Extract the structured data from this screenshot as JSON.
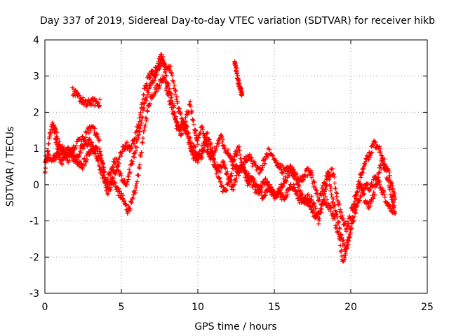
{
  "chart_data": {
    "type": "scatter",
    "title": "Day 337 of 2019, Sidereal Day-to-day VTEC variation (SDTVAR) for receiver hikb",
    "xlabel": "GPS time / hours",
    "ylabel": "SDTVAR / TECUs",
    "xlim": [
      0,
      25
    ],
    "ylim": [
      -3,
      4
    ],
    "xticks": [
      0,
      5,
      10,
      15,
      20,
      25
    ],
    "yticks": [
      -3,
      -2,
      -1,
      0,
      1,
      2,
      3,
      4
    ],
    "grid": true,
    "marker": "+",
    "marker_color": "#ff0000",
    "tracks": [
      {
        "name": "track-1",
        "points": [
          [
            0.0,
            0.4
          ],
          [
            0.2,
            1.0
          ],
          [
            0.4,
            1.6
          ],
          [
            0.7,
            1.5
          ],
          [
            1.0,
            1.0
          ],
          [
            1.3,
            0.8
          ],
          [
            1.6,
            0.9
          ],
          [
            2.0,
            1.1
          ],
          [
            2.4,
            1.2
          ],
          [
            2.8,
            1.5
          ],
          [
            3.2,
            1.5
          ],
          [
            3.5,
            1.3
          ],
          [
            3.8,
            0.5
          ],
          [
            4.0,
            0.0
          ],
          [
            4.3,
            0.4
          ],
          [
            4.6,
            0.7
          ],
          [
            5.0,
            0.2
          ],
          [
            5.3,
            0.0
          ],
          [
            5.6,
            0.5
          ],
          [
            5.9,
            0.9
          ],
          [
            6.2,
            1.5
          ],
          [
            6.5,
            2.2
          ],
          [
            6.8,
            2.7
          ],
          [
            7.1,
            2.9
          ],
          [
            7.4,
            3.2
          ],
          [
            7.7,
            3.5
          ],
          [
            8.0,
            2.8
          ],
          [
            8.3,
            2.4
          ],
          [
            8.6,
            1.8
          ],
          [
            8.9,
            1.4
          ],
          [
            9.2,
            1.8
          ],
          [
            9.5,
            2.2
          ],
          [
            9.8,
            1.5
          ],
          [
            10.0,
            1.2
          ],
          [
            10.3,
            1.6
          ],
          [
            10.6,
            1.0
          ],
          [
            10.9,
            0.8
          ],
          [
            11.2,
            1.0
          ],
          [
            11.5,
            1.3
          ],
          [
            11.8,
            1.0
          ],
          [
            12.1,
            0.8
          ],
          [
            12.4,
            0.5
          ],
          [
            12.7,
            0.4
          ],
          [
            13.0,
            0.6
          ],
          [
            13.3,
            0.8
          ],
          [
            13.6,
            0.6
          ],
          [
            14.0,
            0.4
          ],
          [
            14.3,
            0.6
          ],
          [
            14.6,
            0.9
          ],
          [
            15.0,
            0.7
          ],
          [
            15.3,
            0.5
          ],
          [
            15.6,
            0.4
          ],
          [
            16.0,
            0.5
          ],
          [
            16.3,
            0.3
          ],
          [
            16.7,
            0.1
          ],
          [
            17.0,
            0.3
          ],
          [
            17.3,
            0.4
          ],
          [
            17.6,
            0.0
          ],
          [
            17.9,
            -0.4
          ],
          [
            18.2,
            -0.1
          ],
          [
            18.5,
            0.3
          ],
          [
            18.8,
            -0.4
          ],
          [
            19.1,
            -0.8
          ],
          [
            19.4,
            -1.5
          ],
          [
            19.7,
            -1.8
          ],
          [
            20.0,
            -1.2
          ],
          [
            20.3,
            -0.5
          ],
          [
            20.6,
            0.2
          ],
          [
            20.9,
            0.6
          ],
          [
            21.2,
            0.8
          ],
          [
            21.5,
            1.1
          ],
          [
            21.8,
            1.1
          ],
          [
            22.1,
            0.6
          ],
          [
            22.4,
            0.2
          ],
          [
            22.7,
            -0.4
          ],
          [
            22.9,
            -0.8
          ]
        ]
      },
      {
        "name": "track-2",
        "points": [
          [
            0.0,
            0.7
          ],
          [
            0.3,
            0.8
          ],
          [
            0.6,
            0.7
          ],
          [
            0.9,
            0.9
          ],
          [
            1.2,
            1.0
          ],
          [
            1.5,
            0.7
          ],
          [
            1.8,
            0.8
          ],
          [
            2.1,
            0.6
          ],
          [
            2.4,
            0.5
          ],
          [
            2.7,
            0.7
          ],
          [
            3.0,
            0.9
          ],
          [
            3.3,
            1.0
          ],
          [
            3.6,
            0.8
          ],
          [
            3.9,
            0.3
          ],
          [
            4.2,
            -0.1
          ],
          [
            4.5,
            0.1
          ],
          [
            4.8,
            -0.2
          ],
          [
            5.1,
            -0.4
          ],
          [
            5.4,
            -0.7
          ],
          [
            5.7,
            -0.5
          ],
          [
            6.0,
            0.0
          ],
          [
            6.3,
            0.9
          ],
          [
            6.6,
            1.8
          ],
          [
            6.9,
            2.4
          ],
          [
            7.2,
            2.6
          ],
          [
            7.5,
            2.8
          ],
          [
            7.8,
            3.0
          ],
          [
            8.1,
            2.4
          ],
          [
            8.4,
            2.0
          ],
          [
            8.7,
            1.5
          ],
          [
            9.0,
            1.7
          ],
          [
            9.3,
            1.5
          ],
          [
            9.6,
            1.1
          ],
          [
            9.9,
            0.9
          ],
          [
            10.2,
            0.7
          ],
          [
            10.5,
            1.2
          ],
          [
            10.8,
            0.8
          ],
          [
            11.1,
            0.6
          ],
          [
            11.4,
            0.4
          ],
          [
            11.7,
            0.6
          ],
          [
            12.0,
            0.2
          ],
          [
            12.3,
            -0.1
          ],
          [
            12.6,
            0.3
          ],
          [
            12.9,
            0.5
          ],
          [
            13.2,
            0.3
          ],
          [
            13.5,
            0.1
          ],
          [
            13.8,
            -0.2
          ],
          [
            14.1,
            -0.1
          ],
          [
            14.4,
            0.1
          ],
          [
            14.7,
            -0.1
          ],
          [
            15.0,
            -0.3
          ],
          [
            15.3,
            -0.2
          ],
          [
            15.6,
            -0.4
          ],
          [
            15.9,
            -0.2
          ],
          [
            16.2,
            0.0
          ],
          [
            16.5,
            -0.3
          ],
          [
            16.8,
            -0.5
          ],
          [
            17.1,
            -0.4
          ],
          [
            17.4,
            -0.6
          ],
          [
            17.7,
            -0.9
          ],
          [
            18.0,
            -0.7
          ],
          [
            18.3,
            -0.4
          ],
          [
            18.6,
            -0.6
          ],
          [
            18.9,
            -0.9
          ],
          [
            19.2,
            -1.4
          ],
          [
            19.5,
            -2.1
          ],
          [
            19.8,
            -1.6
          ],
          [
            20.1,
            -1.0
          ],
          [
            20.4,
            -0.6
          ],
          [
            20.7,
            -0.2
          ],
          [
            21.0,
            0.0
          ],
          [
            21.3,
            -0.1
          ],
          [
            21.6,
            0.2
          ],
          [
            21.9,
            0.0
          ],
          [
            22.2,
            -0.3
          ],
          [
            22.5,
            -0.6
          ],
          [
            22.8,
            -0.7
          ]
        ]
      },
      {
        "name": "track-3",
        "points": [
          [
            1.8,
            2.6
          ],
          [
            2.1,
            2.45
          ],
          [
            2.4,
            2.35
          ],
          [
            2.7,
            2.2
          ],
          [
            3.0,
            2.3
          ],
          [
            3.3,
            2.28
          ],
          [
            3.6,
            2.25
          ]
        ]
      },
      {
        "name": "track-4",
        "points": [
          [
            12.4,
            3.4
          ],
          [
            12.5,
            3.2
          ],
          [
            12.6,
            2.95
          ],
          [
            12.7,
            2.75
          ],
          [
            12.8,
            2.6
          ],
          [
            12.9,
            2.5
          ]
        ]
      },
      {
        "name": "track-5",
        "points": [
          [
            0.5,
            1.7
          ],
          [
            0.7,
            1.3
          ],
          [
            0.9,
            0.8
          ],
          [
            1.1,
            0.6
          ],
          [
            1.4,
            0.9
          ],
          [
            1.7,
            1.0
          ],
          [
            2.0,
            0.7
          ],
          [
            2.3,
            0.9
          ],
          [
            2.6,
            1.1
          ],
          [
            2.9,
            1.2
          ],
          [
            3.2,
            1.0
          ],
          [
            3.5,
            0.6
          ],
          [
            3.8,
            0.2
          ],
          [
            4.1,
            -0.2
          ],
          [
            4.4,
            0.2
          ],
          [
            4.7,
            0.5
          ],
          [
            5.0,
            0.9
          ],
          [
            5.3,
            1.1
          ],
          [
            5.6,
            1.0
          ],
          [
            5.9,
            1.3
          ],
          [
            6.2,
            1.8
          ],
          [
            6.5,
            2.6
          ],
          [
            6.8,
            3.0
          ],
          [
            7.1,
            3.1
          ],
          [
            7.4,
            3.3
          ],
          [
            7.6,
            3.6
          ],
          [
            7.9,
            3.2
          ],
          [
            8.2,
            3.3
          ],
          [
            8.5,
            2.6
          ],
          [
            8.8,
            2.0
          ],
          [
            9.1,
            1.6
          ],
          [
            9.4,
            1.2
          ],
          [
            9.7,
            0.8
          ],
          [
            10.0,
            0.7
          ],
          [
            10.3,
            1.0
          ],
          [
            10.6,
            1.4
          ],
          [
            10.9,
            1.0
          ],
          [
            11.2,
            0.4
          ],
          [
            11.5,
            0.0
          ],
          [
            11.8,
            -0.2
          ],
          [
            12.1,
            0.1
          ],
          [
            12.4,
            0.8
          ],
          [
            12.7,
            1.0
          ],
          [
            13.0,
            0.4
          ],
          [
            13.3,
            0.0
          ],
          [
            13.6,
            0.2
          ],
          [
            14.0,
            -0.2
          ],
          [
            14.3,
            -0.3
          ],
          [
            14.6,
            -0.1
          ],
          [
            14.9,
            -0.2
          ],
          [
            15.2,
            -0.3
          ],
          [
            15.5,
            0.0
          ],
          [
            15.8,
            0.2
          ],
          [
            16.1,
            0.4
          ],
          [
            16.4,
            0.2
          ],
          [
            16.7,
            -0.2
          ],
          [
            17.0,
            -0.5
          ],
          [
            17.3,
            -0.3
          ],
          [
            17.6,
            -0.6
          ],
          [
            17.9,
            -1.0
          ],
          [
            18.2,
            -0.4
          ],
          [
            18.5,
            0.2
          ],
          [
            18.8,
            0.4
          ],
          [
            19.1,
            -0.3
          ],
          [
            19.4,
            -0.9
          ],
          [
            19.7,
            -1.2
          ],
          [
            20.0,
            -0.8
          ],
          [
            20.3,
            -0.3
          ],
          [
            20.6,
            0.0
          ],
          [
            20.9,
            -0.4
          ],
          [
            21.2,
            -0.6
          ],
          [
            21.5,
            -0.3
          ],
          [
            21.8,
            0.3
          ],
          [
            22.1,
            0.7
          ],
          [
            22.4,
            0.4
          ],
          [
            22.7,
            0.0
          ],
          [
            22.9,
            -0.4
          ]
        ]
      }
    ]
  }
}
